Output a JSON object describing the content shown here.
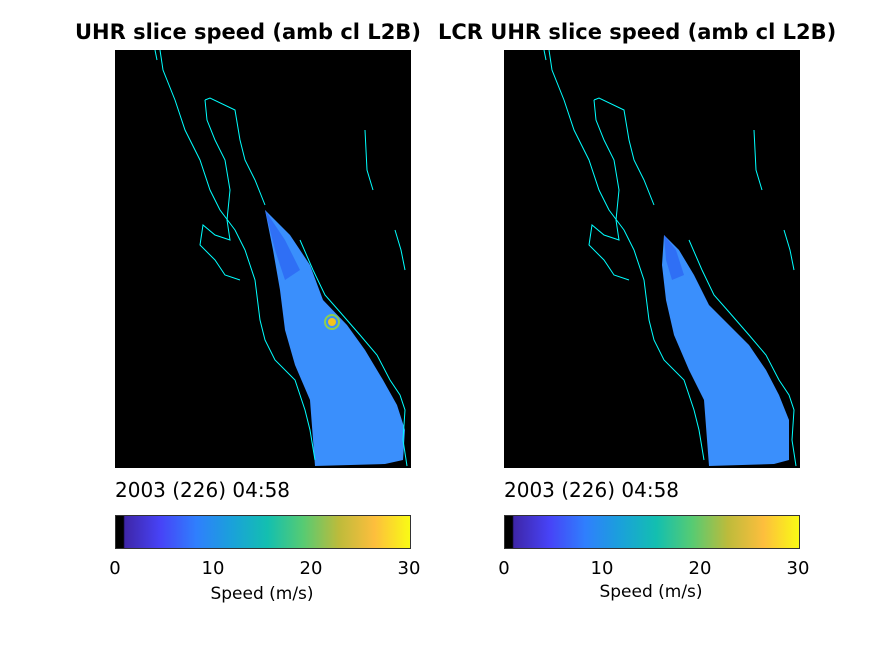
{
  "panels": [
    {
      "title": "UHR slice speed (amb cl L2B)",
      "date_label": "2003 (226) 04:58",
      "colorbar": {
        "ticks": [
          "0",
          "10",
          "20",
          "30"
        ],
        "label": "Speed (m/s)",
        "min": 0,
        "max": 30
      }
    },
    {
      "title": "LCR UHR slice speed (amb cl L2B)",
      "date_label": "2003 (226) 04:58",
      "colorbar": {
        "ticks": [
          "0",
          "10",
          "20",
          "30"
        ],
        "label": "Speed (m/s)",
        "min": 0,
        "max": 30
      }
    }
  ],
  "colors": {
    "background": "#000000",
    "coastline": "#00ffff",
    "colormap": [
      "#3e26a8",
      "#4743f7",
      "#2f7ffd",
      "#1aa1da",
      "#13bfb0",
      "#56cb73",
      "#bdbb3b",
      "#fdbe3d",
      "#f9fb15"
    ]
  }
}
